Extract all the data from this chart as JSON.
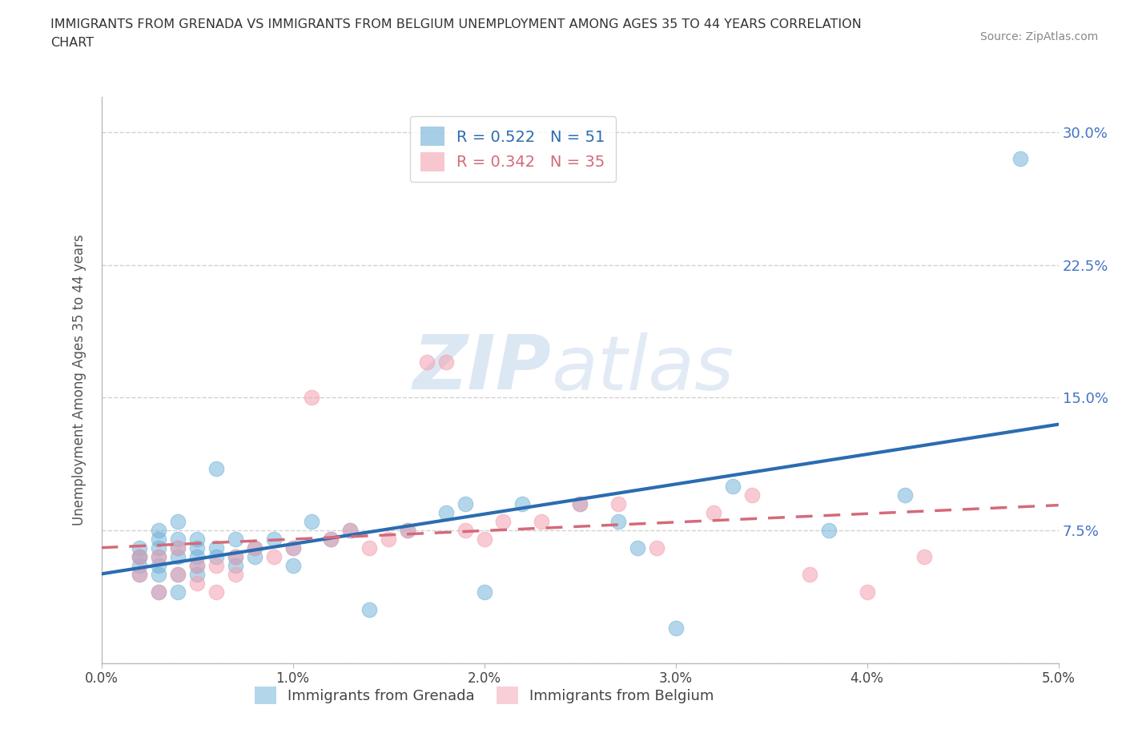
{
  "title_line1": "IMMIGRANTS FROM GRENADA VS IMMIGRANTS FROM BELGIUM UNEMPLOYMENT AMONG AGES 35 TO 44 YEARS CORRELATION",
  "title_line2": "CHART",
  "source": "Source: ZipAtlas.com",
  "ylabel": "Unemployment Among Ages 35 to 44 years",
  "xlim": [
    0.0,
    0.05
  ],
  "ylim": [
    0.0,
    0.32
  ],
  "xticks": [
    0.0,
    0.01,
    0.02,
    0.03,
    0.04,
    0.05
  ],
  "yticks": [
    0.0,
    0.075,
    0.15,
    0.225,
    0.3
  ],
  "xtick_labels": [
    "0.0%",
    "1.0%",
    "2.0%",
    "3.0%",
    "4.0%",
    "5.0%"
  ],
  "ytick_labels": [
    "",
    "7.5%",
    "15.0%",
    "22.5%",
    "30.0%"
  ],
  "grenada_color": "#6baed6",
  "belgium_color": "#f4a0b0",
  "grenada_line_color": "#2b6cb0",
  "belgium_line_color": "#d46a7a",
  "grenada_R": 0.522,
  "grenada_N": 51,
  "belgium_R": 0.342,
  "belgium_N": 35,
  "legend_labels": [
    "Immigrants from Grenada",
    "Immigrants from Belgium"
  ],
  "watermark_zip": "ZIP",
  "watermark_atlas": "atlas",
  "grenada_x": [
    0.002,
    0.002,
    0.002,
    0.002,
    0.002,
    0.003,
    0.003,
    0.003,
    0.003,
    0.003,
    0.003,
    0.003,
    0.004,
    0.004,
    0.004,
    0.004,
    0.004,
    0.004,
    0.005,
    0.005,
    0.005,
    0.005,
    0.005,
    0.006,
    0.006,
    0.006,
    0.007,
    0.007,
    0.007,
    0.008,
    0.008,
    0.009,
    0.01,
    0.01,
    0.011,
    0.012,
    0.013,
    0.014,
    0.016,
    0.018,
    0.019,
    0.02,
    0.022,
    0.025,
    0.027,
    0.028,
    0.03,
    0.033,
    0.038,
    0.042,
    0.048
  ],
  "grenada_y": [
    0.05,
    0.055,
    0.06,
    0.06,
    0.065,
    0.04,
    0.05,
    0.055,
    0.06,
    0.065,
    0.07,
    0.075,
    0.04,
    0.05,
    0.06,
    0.065,
    0.07,
    0.08,
    0.05,
    0.055,
    0.06,
    0.065,
    0.07,
    0.06,
    0.065,
    0.11,
    0.055,
    0.06,
    0.07,
    0.06,
    0.065,
    0.07,
    0.055,
    0.065,
    0.08,
    0.07,
    0.075,
    0.03,
    0.075,
    0.085,
    0.09,
    0.04,
    0.09,
    0.09,
    0.08,
    0.065,
    0.02,
    0.1,
    0.075,
    0.095,
    0.285
  ],
  "belgium_x": [
    0.002,
    0.002,
    0.003,
    0.003,
    0.004,
    0.004,
    0.005,
    0.005,
    0.006,
    0.006,
    0.007,
    0.007,
    0.008,
    0.009,
    0.01,
    0.011,
    0.012,
    0.013,
    0.014,
    0.015,
    0.016,
    0.017,
    0.018,
    0.019,
    0.02,
    0.021,
    0.023,
    0.025,
    0.027,
    0.029,
    0.032,
    0.034,
    0.037,
    0.04,
    0.043
  ],
  "belgium_y": [
    0.05,
    0.06,
    0.04,
    0.06,
    0.05,
    0.065,
    0.045,
    0.055,
    0.04,
    0.055,
    0.05,
    0.06,
    0.065,
    0.06,
    0.065,
    0.15,
    0.07,
    0.075,
    0.065,
    0.07,
    0.075,
    0.17,
    0.17,
    0.075,
    0.07,
    0.08,
    0.08,
    0.09,
    0.09,
    0.065,
    0.085,
    0.095,
    0.05,
    0.04,
    0.06
  ]
}
